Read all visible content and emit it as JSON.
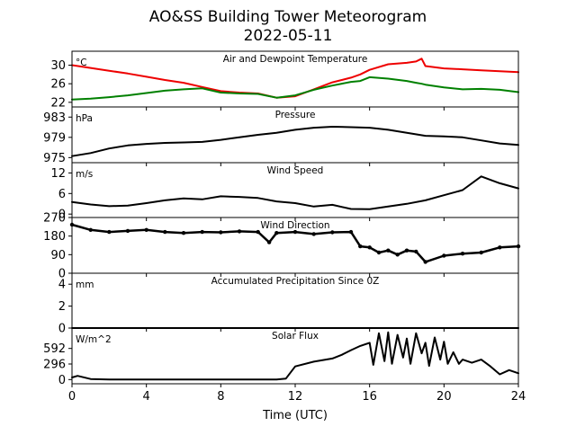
{
  "title_line1": "AO&SS Building Tower Meteorogram",
  "title_line2": "2022-05-11",
  "x_axis": {
    "label": "Time (UTC)",
    "min": 0,
    "max": 24,
    "ticks": [
      0,
      4,
      8,
      12,
      16,
      20,
      24
    ]
  },
  "colors": {
    "temperature": "#ee0000",
    "dewpoint": "#008000",
    "other": "#000000"
  },
  "chart_data": [
    {
      "type": "line",
      "title": "Air and Dewpoint Temperature",
      "unit": "°C",
      "ylim": [
        21,
        33
      ],
      "yticks": [
        22,
        26,
        30
      ],
      "x": [
        0,
        1,
        2,
        3,
        4,
        5,
        6,
        7,
        8,
        9,
        10,
        11,
        12,
        13,
        14,
        15,
        15.5,
        16,
        17,
        18,
        18.5,
        18.8,
        19,
        20,
        21,
        22,
        23,
        24
      ],
      "series": [
        {
          "values": [
            30,
            29.4,
            28.8,
            28.2,
            27.5,
            26.8,
            26.2,
            25.3,
            24.4,
            24.1,
            23.9,
            23.0,
            23.3,
            24.8,
            26.3,
            27.3,
            28,
            29,
            30.2,
            30.5,
            30.8,
            31.4,
            29.8,
            29.3,
            29.1,
            28.9,
            28.7,
            28.5
          ]
        },
        {
          "values": [
            22.6,
            22.8,
            23.1,
            23.5,
            24.0,
            24.5,
            24.8,
            25.0,
            24.1,
            23.9,
            23.8,
            23.0,
            23.5,
            24.7,
            25.6,
            26.4,
            26.6,
            27.4,
            27.1,
            26.6,
            26.2,
            26.0,
            25.8,
            25.2,
            24.8,
            24.9,
            24.7,
            24.2
          ]
        }
      ]
    },
    {
      "type": "line",
      "title": "Pressure",
      "unit": "hPa",
      "ylim": [
        974,
        985
      ],
      "yticks": [
        975,
        979,
        983
      ],
      "x": [
        0,
        1,
        2,
        3,
        4,
        5,
        6,
        7,
        8,
        9,
        10,
        11,
        12,
        13,
        14,
        15,
        16,
        17,
        18,
        19,
        20,
        21,
        22,
        23,
        24
      ],
      "series": [
        {
          "values": [
            975.3,
            975.9,
            976.8,
            977.4,
            977.7,
            977.9,
            978.0,
            978.1,
            978.5,
            979.0,
            979.5,
            979.9,
            980.5,
            980.9,
            981.1,
            981.0,
            980.9,
            980.5,
            979.9,
            979.3,
            979.2,
            979.0,
            978.4,
            977.8,
            977.5
          ]
        }
      ]
    },
    {
      "type": "line",
      "title": "Wind Speed",
      "unit": "m/s",
      "ylim": [
        -1,
        15
      ],
      "yticks": [
        0,
        6,
        12
      ],
      "x": [
        0,
        1,
        2,
        3,
        4,
        5,
        6,
        7,
        8,
        9,
        10,
        11,
        12,
        13,
        14,
        15,
        16,
        17,
        18,
        19,
        20,
        21,
        22,
        23,
        24
      ],
      "series": [
        {
          "values": [
            3.5,
            2.8,
            2.3,
            2.5,
            3.2,
            4.0,
            4.6,
            4.3,
            5.2,
            5.0,
            4.7,
            3.7,
            3.2,
            2.2,
            2.7,
            1.5,
            1.4,
            2.2,
            3.0,
            4.0,
            5.5,
            7.0,
            11.0,
            9.0,
            7.5
          ]
        }
      ]
    },
    {
      "type": "scatter",
      "title": "Wind Direction",
      "unit": "",
      "ylim": [
        0,
        270
      ],
      "yticks": [
        0,
        90,
        180,
        270
      ],
      "x": [
        0,
        1,
        2,
        3,
        4,
        5,
        6,
        7,
        8,
        9,
        10,
        10.6,
        11,
        12,
        13,
        14,
        15,
        15.5,
        16,
        16.5,
        17,
        17.5,
        18,
        18.5,
        19,
        20,
        21,
        22,
        23,
        24
      ],
      "series": [
        {
          "values": [
            235,
            210,
            200,
            205,
            210,
            200,
            195,
            200,
            198,
            203,
            200,
            150,
            195,
            200,
            190,
            198,
            200,
            130,
            125,
            100,
            110,
            90,
            110,
            105,
            55,
            85,
            95,
            100,
            125,
            130
          ]
        }
      ]
    },
    {
      "type": "line",
      "title": "Accumulated Precipitation Since 0Z",
      "unit": "mm",
      "ylim": [
        0,
        5
      ],
      "yticks": [
        0,
        2,
        4
      ],
      "x": [
        0,
        24
      ],
      "series": [
        {
          "values": [
            0,
            0
          ]
        }
      ]
    },
    {
      "type": "line",
      "title": "Solar Flux",
      "unit": "W/m^2",
      "ylim": [
        -80,
        980
      ],
      "yticks": [
        0,
        296,
        592
      ],
      "x": [
        0,
        0.3,
        1,
        2,
        4,
        6,
        8,
        10,
        11,
        11.5,
        12,
        13,
        14,
        14.5,
        15,
        15.5,
        16,
        16.2,
        16.5,
        16.8,
        17,
        17.2,
        17.5,
        17.8,
        18,
        18.2,
        18.5,
        18.8,
        19,
        19.2,
        19.5,
        19.8,
        20,
        20.2,
        20.5,
        20.8,
        21,
        21.5,
        22,
        22.5,
        23,
        23.5,
        24
      ],
      "series": [
        {
          "values": [
            40,
            70,
            10,
            0,
            0,
            0,
            0,
            0,
            0,
            20,
            250,
            340,
            400,
            470,
            560,
            640,
            700,
            280,
            880,
            350,
            900,
            300,
            850,
            420,
            780,
            300,
            880,
            500,
            700,
            260,
            800,
            380,
            720,
            300,
            520,
            300,
            380,
            320,
            380,
            250,
            100,
            180,
            120
          ]
        }
      ]
    }
  ]
}
